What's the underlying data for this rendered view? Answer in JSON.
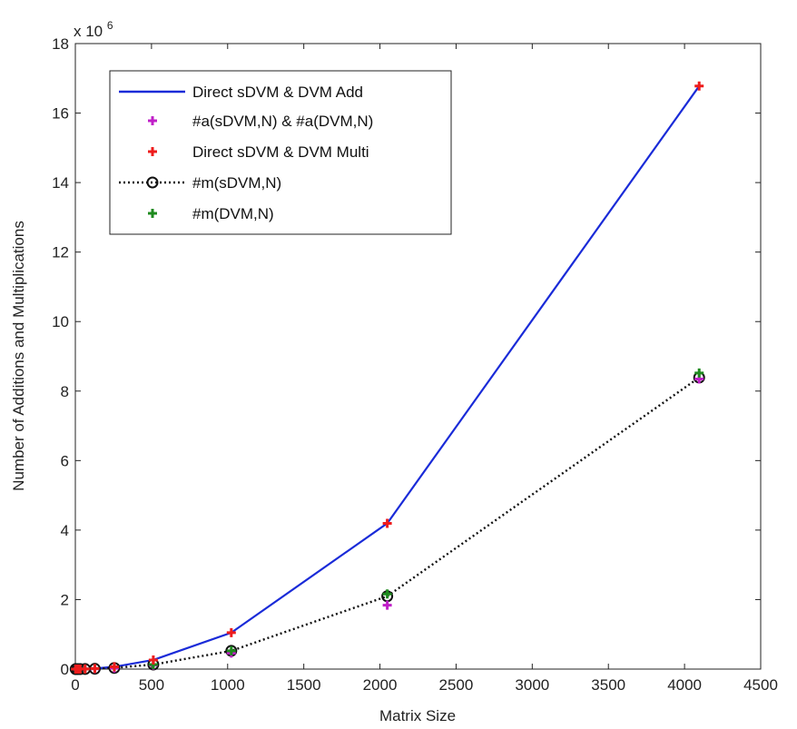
{
  "chart_data": {
    "type": "line",
    "xlabel": "Matrix Size",
    "ylabel": "Number of Additions and Multiplications",
    "y_multiplier_label": "x 10",
    "y_multiplier_exponent": "6",
    "xlim": [
      0,
      4500
    ],
    "ylim": [
      0,
      18
    ],
    "x_ticks": [
      0,
      500,
      1000,
      1500,
      2000,
      2500,
      3000,
      3500,
      4000,
      4500
    ],
    "y_ticks": [
      0,
      2,
      4,
      6,
      8,
      10,
      12,
      14,
      16,
      18
    ],
    "grid": false,
    "legend_position": "top-left",
    "series": [
      {
        "name": "Direct sDVM & DVM Add",
        "style": "solid-line",
        "color": "#1a2bd8",
        "x": [
          2,
          4,
          8,
          16,
          32,
          64,
          128,
          256,
          512,
          1024,
          2048,
          4096
        ],
        "y": [
          4e-06,
          1.6e-05,
          6.4e-05,
          0.000256,
          0.001024,
          0.004096,
          0.016384,
          0.065536,
          0.262144,
          1.048576,
          4.194304,
          16.777216
        ]
      },
      {
        "name": "#a(sDVM,N) & #a(DVM,N)",
        "style": "plus-marker",
        "color": "#c020c8",
        "x": [
          2,
          4,
          8,
          16,
          32,
          64,
          128,
          256,
          512,
          1024,
          2048,
          4096
        ],
        "y": [
          4e-06,
          1.2e-05,
          4e-05,
          0.000136,
          0.000496,
          0.001888,
          0.00736,
          0.029056,
          0.115456,
          0.460288,
          1.83808,
          8.346624
        ]
      },
      {
        "name": "Direct sDVM & DVM Multi",
        "style": "plus-marker",
        "color": "#ee1c1c",
        "x": [
          2,
          4,
          8,
          16,
          32,
          64,
          128,
          256,
          512,
          1024,
          2048,
          4096
        ],
        "y": [
          4e-06,
          1.6e-05,
          6.4e-05,
          0.000256,
          0.001024,
          0.004096,
          0.016384,
          0.065536,
          0.262144,
          1.048576,
          4.194304,
          16.777216
        ]
      },
      {
        "name": "#m(sDVM,N)",
        "style": "dotted-line-circle",
        "color": "#111111",
        "x": [
          2,
          4,
          8,
          16,
          32,
          64,
          128,
          256,
          512,
          1024,
          2048,
          4096
        ],
        "y": [
          2e-06,
          8e-06,
          3.2e-05,
          0.000128,
          0.000512,
          0.002048,
          0.008192,
          0.032768,
          0.131072,
          0.524288,
          2.097152,
          8.388608
        ]
      },
      {
        "name": "#m(DVM,N)",
        "style": "plus-marker",
        "color": "#1e8a1e",
        "x": [
          2,
          4,
          8,
          16,
          32,
          64,
          128,
          256,
          512,
          1024,
          2048,
          4096
        ],
        "y": [
          4e-06,
          1.6e-05,
          6.4e-05,
          0.000256,
          0.001024,
          0.004096,
          0.016384,
          0.065536,
          0.131072,
          0.524288,
          2.162688,
          8.51968
        ]
      }
    ]
  }
}
